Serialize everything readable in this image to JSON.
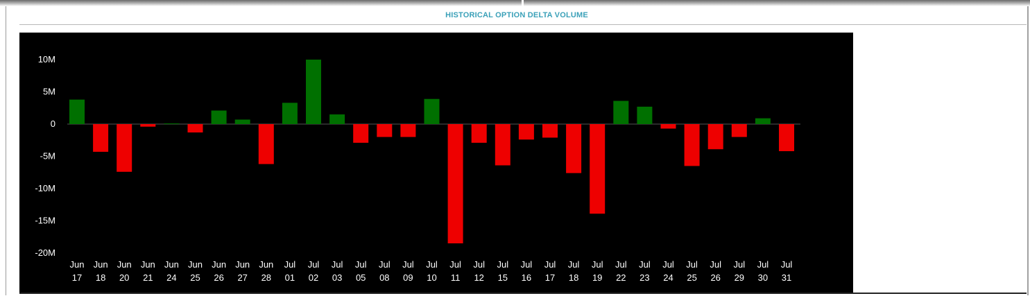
{
  "panel": {
    "title": "HISTORICAL OPTION DELTA VOLUME"
  },
  "chart_data": {
    "type": "bar",
    "title": "HISTORICAL OPTION DELTA VOLUME",
    "xlabel": "",
    "ylabel": "",
    "ylim": [
      -20000000,
      10000000
    ],
    "yticks": [
      10000000,
      5000000,
      0,
      -5000000,
      -10000000,
      -15000000,
      -20000000
    ],
    "ytick_labels": [
      "10M",
      "5M",
      "0",
      "-5M",
      "-10M",
      "-15M",
      "-20M"
    ],
    "grid": false,
    "legend": "none",
    "colors": {
      "positive": "#007000",
      "negative": "#ee0000",
      "background": "#000000",
      "text": "#ffffff",
      "zero_line": "#555555"
    },
    "categories": [
      [
        "Jun",
        "17"
      ],
      [
        "Jun",
        "18"
      ],
      [
        "Jun",
        "20"
      ],
      [
        "Jun",
        "21"
      ],
      [
        "Jun",
        "24"
      ],
      [
        "Jun",
        "25"
      ],
      [
        "Jun",
        "26"
      ],
      [
        "Jun",
        "27"
      ],
      [
        "Jun",
        "28"
      ],
      [
        "Jul",
        "01"
      ],
      [
        "Jul",
        "02"
      ],
      [
        "Jul",
        "03"
      ],
      [
        "Jul",
        "05"
      ],
      [
        "Jul",
        "08"
      ],
      [
        "Jul",
        "09"
      ],
      [
        "Jul",
        "10"
      ],
      [
        "Jul",
        "11"
      ],
      [
        "Jul",
        "12"
      ],
      [
        "Jul",
        "15"
      ],
      [
        "Jul",
        "16"
      ],
      [
        "Jul",
        "17"
      ],
      [
        "Jul",
        "18"
      ],
      [
        "Jul",
        "19"
      ],
      [
        "Jul",
        "22"
      ],
      [
        "Jul",
        "23"
      ],
      [
        "Jul",
        "24"
      ],
      [
        "Jul",
        "25"
      ],
      [
        "Jul",
        "26"
      ],
      [
        "Jul",
        "29"
      ],
      [
        "Jul",
        "30"
      ],
      [
        "Jul",
        "31"
      ]
    ],
    "values": [
      3800000,
      -4300000,
      -7400000,
      -400000,
      100000,
      -1300000,
      2100000,
      700000,
      -6200000,
      3300000,
      10000000,
      1500000,
      -2900000,
      -2000000,
      -2000000,
      3900000,
      -18500000,
      -2900000,
      -6400000,
      -2400000,
      -2100000,
      -7600000,
      -13900000,
      3600000,
      2700000,
      -700000,
      -6500000,
      -3900000,
      -2000000,
      900000,
      -4200000
    ]
  }
}
